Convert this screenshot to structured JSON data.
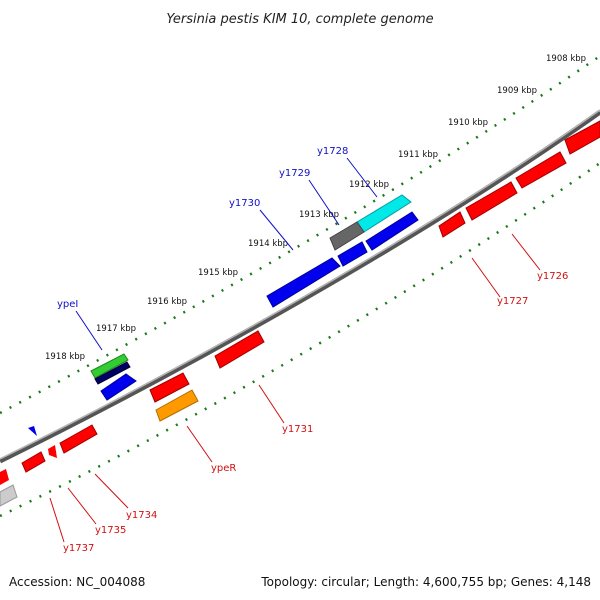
{
  "title": "Yersinia pestis KIM 10, complete genome",
  "footer": {
    "accession": "Accession: NC_004088",
    "summary": "Topology: circular; Length: 4,600,755 bp; Genes: 4,148"
  },
  "colors": {
    "axis": "#808080",
    "tick": "#1a7a1a",
    "forward_label": "#1010c8",
    "reverse_label": "#d01010",
    "red": "#ff0000",
    "blue": "#0000ee",
    "cyan": "#00e8e8",
    "gray": "#666666",
    "green": "#33cc33",
    "navy": "#000066",
    "orange": "#ff9900",
    "lightgray": "#cccccc"
  },
  "kbp_labels": [
    "1908 kbp",
    "1909 kbp",
    "1910 kbp",
    "1911 kbp",
    "1912 kbp",
    "1913 kbp",
    "1914 kbp",
    "1915 kbp",
    "1916 kbp",
    "1917 kbp",
    "1918 kbp"
  ],
  "forward_gene_labels": [
    "y1728",
    "y1729",
    "y1730",
    "ypeI"
  ],
  "reverse_gene_labels": [
    "y1726",
    "y1727",
    "y1731",
    "ypeR",
    "y1734",
    "y1735",
    "y1737"
  ]
}
